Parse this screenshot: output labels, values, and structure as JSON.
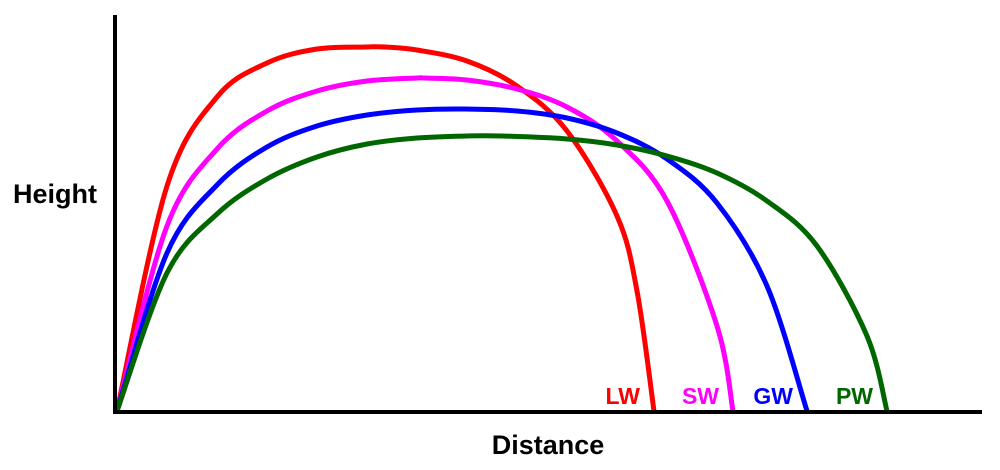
{
  "chart_data": {
    "type": "line",
    "xlabel": "Distance",
    "ylabel": "Height",
    "xticks": [],
    "yticks": [],
    "grid": false,
    "legend": "inline labels at end of each trajectory",
    "series": [
      {
        "name": "LW",
        "color": "#ff0000",
        "x": [
          0,
          50,
          100,
          150,
          200,
          250,
          268,
          300,
          350,
          400,
          450,
          500,
          520,
          537
        ],
        "y": [
          0,
          225,
          314,
          348,
          362,
          364,
          364,
          361,
          350,
          325,
          280,
          195,
          120,
          0
        ]
      },
      {
        "name": "SW",
        "color": "#ff00ff",
        "x": [
          0,
          50,
          100,
          150,
          200,
          250,
          300,
          308,
          350,
          400,
          450,
          500,
          550,
          600,
          616
        ],
        "y": [
          0,
          185,
          262,
          300,
          320,
          330,
          333,
          333,
          331,
          322,
          304,
          270,
          210,
          85,
          0
        ]
      },
      {
        "name": "GW",
        "color": "#0000ff",
        "x": [
          0,
          50,
          100,
          150,
          200,
          250,
          300,
          347,
          400,
          450,
          500,
          550,
          600,
          650,
          690
        ],
        "y": [
          0,
          158,
          226,
          264,
          285,
          296,
          301,
          302,
          300,
          293,
          278,
          252,
          208,
          125,
          0
        ]
      },
      {
        "name": "PW",
        "color": "#006600",
        "x": [
          0,
          50,
          100,
          150,
          200,
          250,
          300,
          350,
          385,
          450,
          500,
          550,
          600,
          650,
          700,
          750,
          770
        ],
        "y": [
          0,
          138,
          197,
          232,
          254,
          267,
          273,
          275,
          275,
          272,
          266,
          255,
          238,
          210,
          165,
          75,
          0
        ]
      }
    ]
  }
}
